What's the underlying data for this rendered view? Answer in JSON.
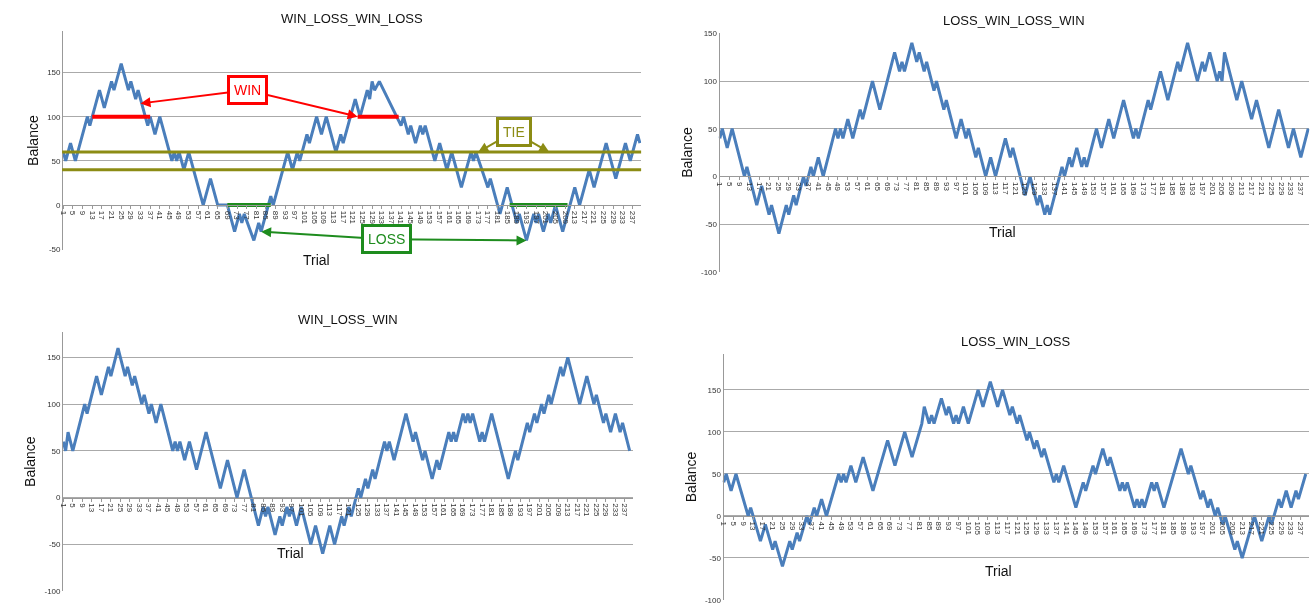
{
  "chart_data": [
    {
      "type": "line",
      "title": "WIN_LOSS_WIN_LOSS",
      "xlabel": "Trial",
      "ylabel": "Balance",
      "xlim": [
        0.5,
        240.5
      ],
      "xticks": [
        1,
        5,
        9,
        13,
        17,
        21,
        25,
        29,
        33,
        37,
        41,
        45,
        49,
        53,
        57,
        61,
        65,
        69,
        73,
        77,
        81,
        85,
        89,
        93,
        97,
        101,
        105,
        109,
        113,
        117,
        121,
        125,
        129,
        133,
        137,
        141,
        145,
        149,
        153,
        157,
        161,
        165,
        169,
        173,
        177,
        181,
        185,
        189,
        193,
        197,
        201,
        205,
        209,
        213,
        217,
        221,
        225,
        229,
        233,
        237
      ],
      "ylim": [
        -51,
        197
      ],
      "yticks": [
        -50,
        0,
        50,
        100,
        150
      ],
      "grid": "y",
      "series": [
        {
          "color": "#4a7ebb",
          "x": [
            1,
            2,
            4,
            6,
            11,
            12,
            16,
            18,
            21,
            22,
            25,
            28,
            29,
            31,
            32,
            36,
            37,
            39,
            41,
            46,
            47,
            48,
            49,
            51,
            53,
            59,
            62,
            65,
            69,
            72,
            74,
            75,
            76,
            80,
            82,
            83,
            87,
            88,
            94,
            96,
            98,
            99,
            102,
            103,
            106,
            108,
            110,
            114,
            116,
            117,
            122,
            124,
            127,
            128,
            129,
            130,
            132,
            141,
            142,
            144,
            145,
            147,
            149,
            150,
            151,
            155,
            157,
            160,
            162,
            163,
            166,
            170,
            171,
            172,
            177,
            178,
            182,
            185,
            187,
            189,
            190,
            193,
            196,
            197,
            198,
            200,
            202,
            203,
            205,
            208,
            211,
            213,
            215,
            219,
            221,
            226,
            230,
            234,
            236,
            239,
            240
          ],
          "values": [
            60,
            50,
            70,
            50,
            100,
            90,
            130,
            110,
            140,
            130,
            160,
            130,
            140,
            120,
            130,
            90,
            100,
            80,
            100,
            50,
            60,
            50,
            60,
            40,
            60,
            0,
            30,
            0,
            0,
            -30,
            -10,
            -20,
            -10,
            -40,
            -20,
            -30,
            10,
            0,
            60,
            40,
            60,
            50,
            80,
            70,
            100,
            80,
            100,
            60,
            80,
            70,
            120,
            100,
            130,
            120,
            140,
            130,
            140,
            90,
            100,
            80,
            90,
            70,
            90,
            80,
            90,
            50,
            70,
            40,
            60,
            50,
            20,
            60,
            50,
            60,
            20,
            30,
            -10,
            20,
            0,
            -20,
            -10,
            -40,
            -10,
            -20,
            -10,
            -30,
            -10,
            -20,
            0,
            -30,
            0,
            20,
            0,
            40,
            20,
            70,
            30,
            70,
            50,
            80,
            70
          ]
        },
        {
          "color": "#ff0000",
          "x": [
            13,
            37
          ],
          "values": [
            100,
            100
          ]
        },
        {
          "color": "#ff0000",
          "x": [
            123,
            140
          ],
          "values": [
            100,
            100
          ]
        },
        {
          "color": "#1e8c1e",
          "x": [
            69,
            87
          ],
          "values": [
            0,
            0
          ]
        },
        {
          "color": "#1e8c1e",
          "x": [
            186,
            210
          ],
          "values": [
            0,
            0
          ]
        }
      ],
      "ref_lines": [
        {
          "axis": "y",
          "value": 60,
          "color": "#8c8c14"
        },
        {
          "axis": "y",
          "value": 40,
          "color": "#8c8c14"
        }
      ],
      "annotations": [
        {
          "text": "WIN",
          "x": 33,
          "y": 115
        },
        {
          "text": "LOSS",
          "x": 83,
          "y": -30
        },
        {
          "text": "TIE",
          "x": 173,
          "y": 60
        }
      ]
    },
    {
      "type": "line",
      "title": "LOSS_WIN_LOSS_WIN",
      "xlabel": "Trial",
      "ylabel": "Balance",
      "xlim": [
        0.5,
        240.5
      ],
      "xticks": [
        1,
        5,
        9,
        13,
        17,
        21,
        25,
        29,
        33,
        37,
        41,
        45,
        49,
        53,
        57,
        61,
        65,
        69,
        73,
        77,
        81,
        85,
        89,
        93,
        97,
        101,
        105,
        109,
        113,
        117,
        121,
        125,
        129,
        133,
        137,
        141,
        145,
        149,
        153,
        157,
        161,
        165,
        169,
        173,
        177,
        181,
        185,
        189,
        193,
        197,
        201,
        205,
        209,
        213,
        217,
        221,
        225,
        229,
        233,
        237
      ],
      "ylim": [
        -100,
        150
      ],
      "yticks": [
        -100,
        -50,
        0,
        50,
        100,
        150
      ],
      "grid": "y",
      "series": [
        {
          "color": "#4a7ebb",
          "x": [
            1,
            2,
            4,
            6,
            11,
            12,
            16,
            18,
            21,
            22,
            25,
            28,
            29,
            31,
            32,
            35,
            36,
            38,
            39,
            41,
            43,
            48,
            49,
            50,
            51,
            53,
            55,
            58,
            59,
            63,
            66,
            69,
            72,
            74,
            75,
            76,
            79,
            81,
            82,
            84,
            85,
            88,
            89,
            92,
            93,
            97,
            99,
            101,
            102,
            105,
            106,
            109,
            111,
            113,
            117,
            119,
            120,
            125,
            127,
            130,
            131,
            133,
            134,
            135,
            140,
            141,
            143,
            144,
            146,
            148,
            149,
            150,
            154,
            156,
            159,
            161,
            165,
            169,
            170,
            171,
            175,
            176,
            180,
            183,
            187,
            188,
            191,
            195,
            197,
            198,
            200,
            203,
            204,
            205,
            206,
            211,
            213,
            217,
            219,
            224,
            228,
            232,
            234,
            237,
            240
          ],
          "values": [
            40,
            50,
            30,
            50,
            0,
            10,
            -30,
            -10,
            -40,
            -30,
            -60,
            -30,
            -40,
            -20,
            -30,
            0,
            -10,
            10,
            0,
            20,
            0,
            50,
            40,
            50,
            40,
            60,
            40,
            70,
            60,
            100,
            70,
            100,
            130,
            110,
            120,
            110,
            140,
            120,
            130,
            110,
            120,
            90,
            100,
            70,
            80,
            40,
            60,
            40,
            50,
            20,
            30,
            0,
            20,
            0,
            40,
            20,
            30,
            -20,
            0,
            -30,
            -20,
            -40,
            -30,
            -40,
            10,
            0,
            20,
            10,
            30,
            10,
            20,
            10,
            50,
            30,
            60,
            40,
            80,
            40,
            50,
            40,
            80,
            70,
            110,
            80,
            120,
            110,
            140,
            100,
            120,
            110,
            130,
            100,
            110,
            100,
            130,
            80,
            100,
            60,
            80,
            30,
            70,
            30,
            50,
            20,
            50
          ]
        }
      ]
    },
    {
      "type": "line",
      "title": "WIN_LOSS_WIN",
      "xlabel": "Trial",
      "ylabel": "Balance",
      "xlim": [
        0.5,
        240.5
      ],
      "xticks": [
        1,
        5,
        9,
        13,
        17,
        21,
        25,
        29,
        33,
        37,
        41,
        45,
        49,
        53,
        57,
        61,
        65,
        69,
        73,
        77,
        81,
        85,
        89,
        93,
        97,
        101,
        105,
        109,
        113,
        117,
        121,
        125,
        129,
        133,
        137,
        141,
        145,
        149,
        153,
        157,
        161,
        165,
        169,
        173,
        177,
        181,
        185,
        189,
        193,
        197,
        201,
        205,
        209,
        213,
        217,
        221,
        225,
        229,
        233,
        237
      ],
      "ylim": [
        -100,
        177
      ],
      "yticks": [
        -100,
        -50,
        0,
        50,
        100,
        150
      ],
      "grid": "y",
      "series": [
        {
          "color": "#4a7ebb",
          "x": [
            1,
            2,
            3,
            5,
            10,
            11,
            15,
            17,
            20,
            21,
            24,
            27,
            28,
            30,
            31,
            34,
            35,
            37,
            38,
            40,
            42,
            47,
            48,
            49,
            50,
            52,
            54,
            57,
            61,
            67,
            70,
            74,
            77,
            83,
            85,
            86,
            87,
            90,
            92,
            93,
            95,
            96,
            97,
            99,
            101,
            105,
            107,
            110,
            113,
            115,
            118,
            119,
            121,
            122,
            125,
            126,
            128,
            129,
            131,
            132,
            134,
            136,
            137,
            138,
            140,
            145,
            148,
            149,
            152,
            153,
            156,
            158,
            159,
            163,
            164,
            165,
            166,
            169,
            170,
            171,
            172,
            173,
            176,
            177,
            178,
            181,
            188,
            191,
            192,
            196,
            197,
            199,
            200,
            202,
            203,
            205,
            206,
            210,
            211,
            213,
            218,
            221,
            224,
            225,
            228,
            229,
            231,
            233,
            235,
            236,
            239
          ],
          "values": [
            60,
            50,
            70,
            50,
            100,
            90,
            130,
            110,
            140,
            130,
            160,
            130,
            140,
            120,
            130,
            100,
            110,
            90,
            100,
            80,
            100,
            50,
            60,
            50,
            60,
            40,
            60,
            30,
            70,
            10,
            40,
            0,
            30,
            -30,
            -10,
            -20,
            -10,
            -40,
            -20,
            -30,
            -10,
            -20,
            -10,
            -30,
            -10,
            -50,
            -30,
            -60,
            -30,
            -50,
            -20,
            -30,
            -10,
            -20,
            10,
            0,
            20,
            10,
            30,
            20,
            40,
            60,
            50,
            60,
            40,
            90,
            60,
            70,
            40,
            50,
            20,
            40,
            30,
            70,
            60,
            70,
            60,
            90,
            80,
            90,
            80,
            90,
            60,
            70,
            60,
            90,
            20,
            50,
            40,
            80,
            70,
            90,
            80,
            100,
            90,
            110,
            100,
            140,
            130,
            150,
            100,
            130,
            100,
            110,
            80,
            90,
            70,
            90,
            70,
            80,
            50
          ]
        }
      ]
    },
    {
      "type": "line",
      "title": "LOSS_WIN_LOSS",
      "xlabel": "Trial",
      "ylabel": "Balance",
      "xlim": [
        0.5,
        240.5
      ],
      "xticks": [
        1,
        5,
        9,
        13,
        17,
        21,
        25,
        29,
        33,
        37,
        41,
        45,
        49,
        53,
        57,
        61,
        65,
        69,
        73,
        77,
        81,
        85,
        89,
        93,
        97,
        101,
        105,
        109,
        113,
        117,
        121,
        125,
        129,
        133,
        137,
        141,
        145,
        149,
        153,
        157,
        161,
        165,
        169,
        173,
        177,
        181,
        185,
        189,
        193,
        197,
        201,
        205,
        209,
        213,
        217,
        221,
        225,
        229,
        233,
        237
      ],
      "ylim": [
        -100,
        193
      ],
      "yticks": [
        -100,
        -50,
        0,
        50,
        100,
        150
      ],
      "grid": "y",
      "series": [
        {
          "color": "#4a7ebb",
          "x": [
            1,
            2,
            4,
            6,
            11,
            12,
            16,
            18,
            21,
            22,
            25,
            28,
            29,
            31,
            32,
            35,
            36,
            38,
            39,
            41,
            43,
            48,
            49,
            50,
            51,
            53,
            55,
            58,
            62,
            68,
            71,
            75,
            78,
            82,
            83,
            85,
            86,
            87,
            90,
            92,
            93,
            95,
            96,
            97,
            99,
            101,
            105,
            107,
            110,
            113,
            115,
            118,
            119,
            121,
            122,
            125,
            126,
            128,
            129,
            131,
            132,
            134,
            136,
            137,
            138,
            140,
            145,
            148,
            149,
            152,
            153,
            156,
            158,
            159,
            163,
            164,
            165,
            166,
            169,
            170,
            171,
            172,
            173,
            176,
            177,
            178,
            181,
            188,
            191,
            192,
            196,
            197,
            199,
            200,
            202,
            203,
            205,
            206,
            210,
            211,
            213,
            218,
            221,
            224,
            225,
            228,
            229,
            231,
            233,
            235,
            236,
            239
          ],
          "values": [
            40,
            50,
            30,
            50,
            0,
            10,
            -30,
            -10,
            -40,
            -30,
            -60,
            -30,
            -40,
            -20,
            -30,
            0,
            -10,
            10,
            0,
            20,
            0,
            50,
            40,
            50,
            40,
            60,
            40,
            70,
            30,
            90,
            60,
            100,
            70,
            110,
            130,
            110,
            120,
            110,
            140,
            120,
            130,
            110,
            120,
            110,
            130,
            110,
            150,
            130,
            160,
            130,
            150,
            120,
            130,
            110,
            120,
            90,
            100,
            80,
            90,
            70,
            80,
            60,
            40,
            50,
            40,
            60,
            10,
            40,
            30,
            60,
            50,
            80,
            60,
            70,
            30,
            40,
            30,
            40,
            10,
            20,
            10,
            20,
            10,
            40,
            30,
            40,
            10,
            80,
            50,
            60,
            20,
            30,
            10,
            20,
            0,
            10,
            -10,
            0,
            -40,
            -30,
            -50,
            0,
            -30,
            0,
            -10,
            20,
            10,
            30,
            10,
            30,
            20,
            50
          ]
        }
      ]
    }
  ]
}
